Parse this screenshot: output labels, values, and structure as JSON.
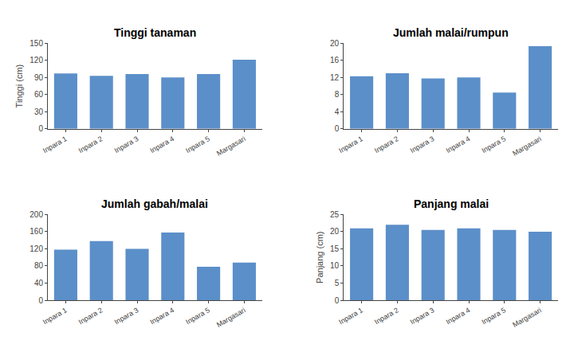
{
  "chart_data": [
    {
      "type": "bar",
      "title": "Tinggi tanaman",
      "ylabel": "Tinggi (cm)",
      "categories": [
        "Inpara 1",
        "Inpara 2",
        "Inpara 3",
        "Inpara 4",
        "Inpara 5",
        "Margasari"
      ],
      "values": [
        97,
        93,
        96,
        90,
        96,
        121
      ],
      "color": "#5b8fc9",
      "ylim": [
        0,
        150
      ],
      "yticks": [
        0,
        30,
        60,
        90,
        120,
        150
      ],
      "grid": false
    },
    {
      "type": "bar",
      "title": "Jumlah malai/rumpun",
      "categories": [
        "Inpara 1",
        "Inpara 2",
        "Inpara 3",
        "Inpara 4",
        "Inpara 5",
        "Margasari"
      ],
      "values": [
        12.3,
        13.0,
        11.8,
        12.0,
        8.5,
        19.3
      ],
      "color": "#5b8fc9",
      "ylim": [
        0,
        20
      ],
      "yticks": [
        0,
        4,
        8,
        12,
        16,
        20
      ],
      "grid": false
    },
    {
      "type": "bar",
      "title": "Jumlah gabah/malai",
      "categories": [
        "Inpara 1",
        "Inpara 2",
        "Inpara 3",
        "Inpara 4",
        "Inpara 5",
        "Margasari"
      ],
      "values": [
        118,
        138,
        120,
        158,
        78,
        88
      ],
      "color": "#5b8fc9",
      "ylim": [
        0,
        200
      ],
      "yticks": [
        0,
        40,
        80,
        120,
        160,
        200
      ],
      "grid": false
    },
    {
      "type": "bar",
      "title": "Panjang malai",
      "ylabel": "Panjang (cm)",
      "categories": [
        "Inpara 1",
        "Inpara 2",
        "Inpara 3",
        "Inpara 4",
        "Inpara 5",
        "Margasari"
      ],
      "values": [
        21.0,
        22.0,
        20.5,
        21.0,
        20.5,
        20.0
      ],
      "color": "#5b8fc9",
      "ylim": [
        0,
        25
      ],
      "yticks": [
        0,
        5,
        10,
        15,
        20,
        25
      ],
      "grid": false
    }
  ]
}
